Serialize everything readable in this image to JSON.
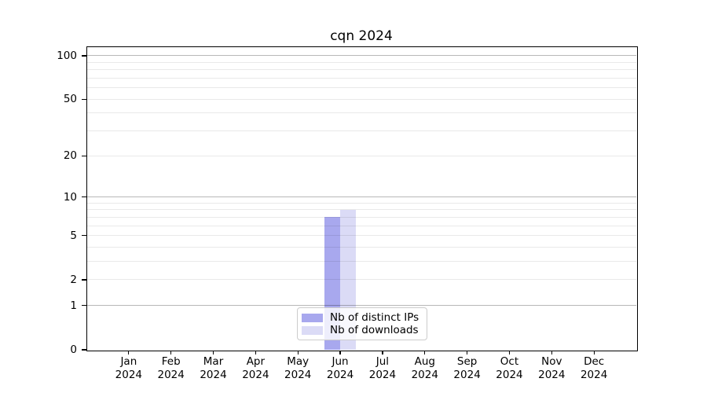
{
  "title": "cqn 2024",
  "colors": {
    "bar_distinct_ips": "#a8a8ee",
    "bar_downloads": "#dbdbf6",
    "grid_major": "#b8b8b8",
    "grid_minor": "#eaeaea",
    "axis": "#000000",
    "legend_border": "#cccccc"
  },
  "chart_data": {
    "type": "bar",
    "title": "cqn 2024",
    "categories": [
      "Jan 2024",
      "Feb 2024",
      "Mar 2024",
      "Apr 2024",
      "May 2024",
      "Jun 2024",
      "Jul 2024",
      "Aug 2024",
      "Sep 2024",
      "Oct 2024",
      "Nov 2024",
      "Dec 2024"
    ],
    "series": [
      {
        "name": "Nb of distinct IPs",
        "color": "#a8a8ee",
        "values": [
          0,
          0,
          0,
          0,
          0,
          7,
          0,
          0,
          0,
          0,
          0,
          0
        ]
      },
      {
        "name": "Nb of downloads",
        "color": "#dbdbf6",
        "values": [
          0,
          0,
          0,
          0,
          0,
          8,
          0,
          0,
          0,
          0,
          0,
          0
        ]
      }
    ],
    "xlabel": "",
    "ylabel": "",
    "y_axis": {
      "scale": "log1p",
      "ticks": [
        0,
        1,
        2,
        5,
        10,
        20,
        50,
        100
      ],
      "min": 0,
      "max": 116
    },
    "gridlines": {
      "major": [
        1,
        10,
        100
      ],
      "minor": [
        2,
        3,
        4,
        5,
        6,
        7,
        8,
        9,
        20,
        30,
        40,
        50,
        60,
        70,
        80,
        90
      ]
    },
    "legend": {
      "position": "bottom-center",
      "entries": [
        "Nb of distinct IPs",
        "Nb of downloads"
      ]
    }
  }
}
